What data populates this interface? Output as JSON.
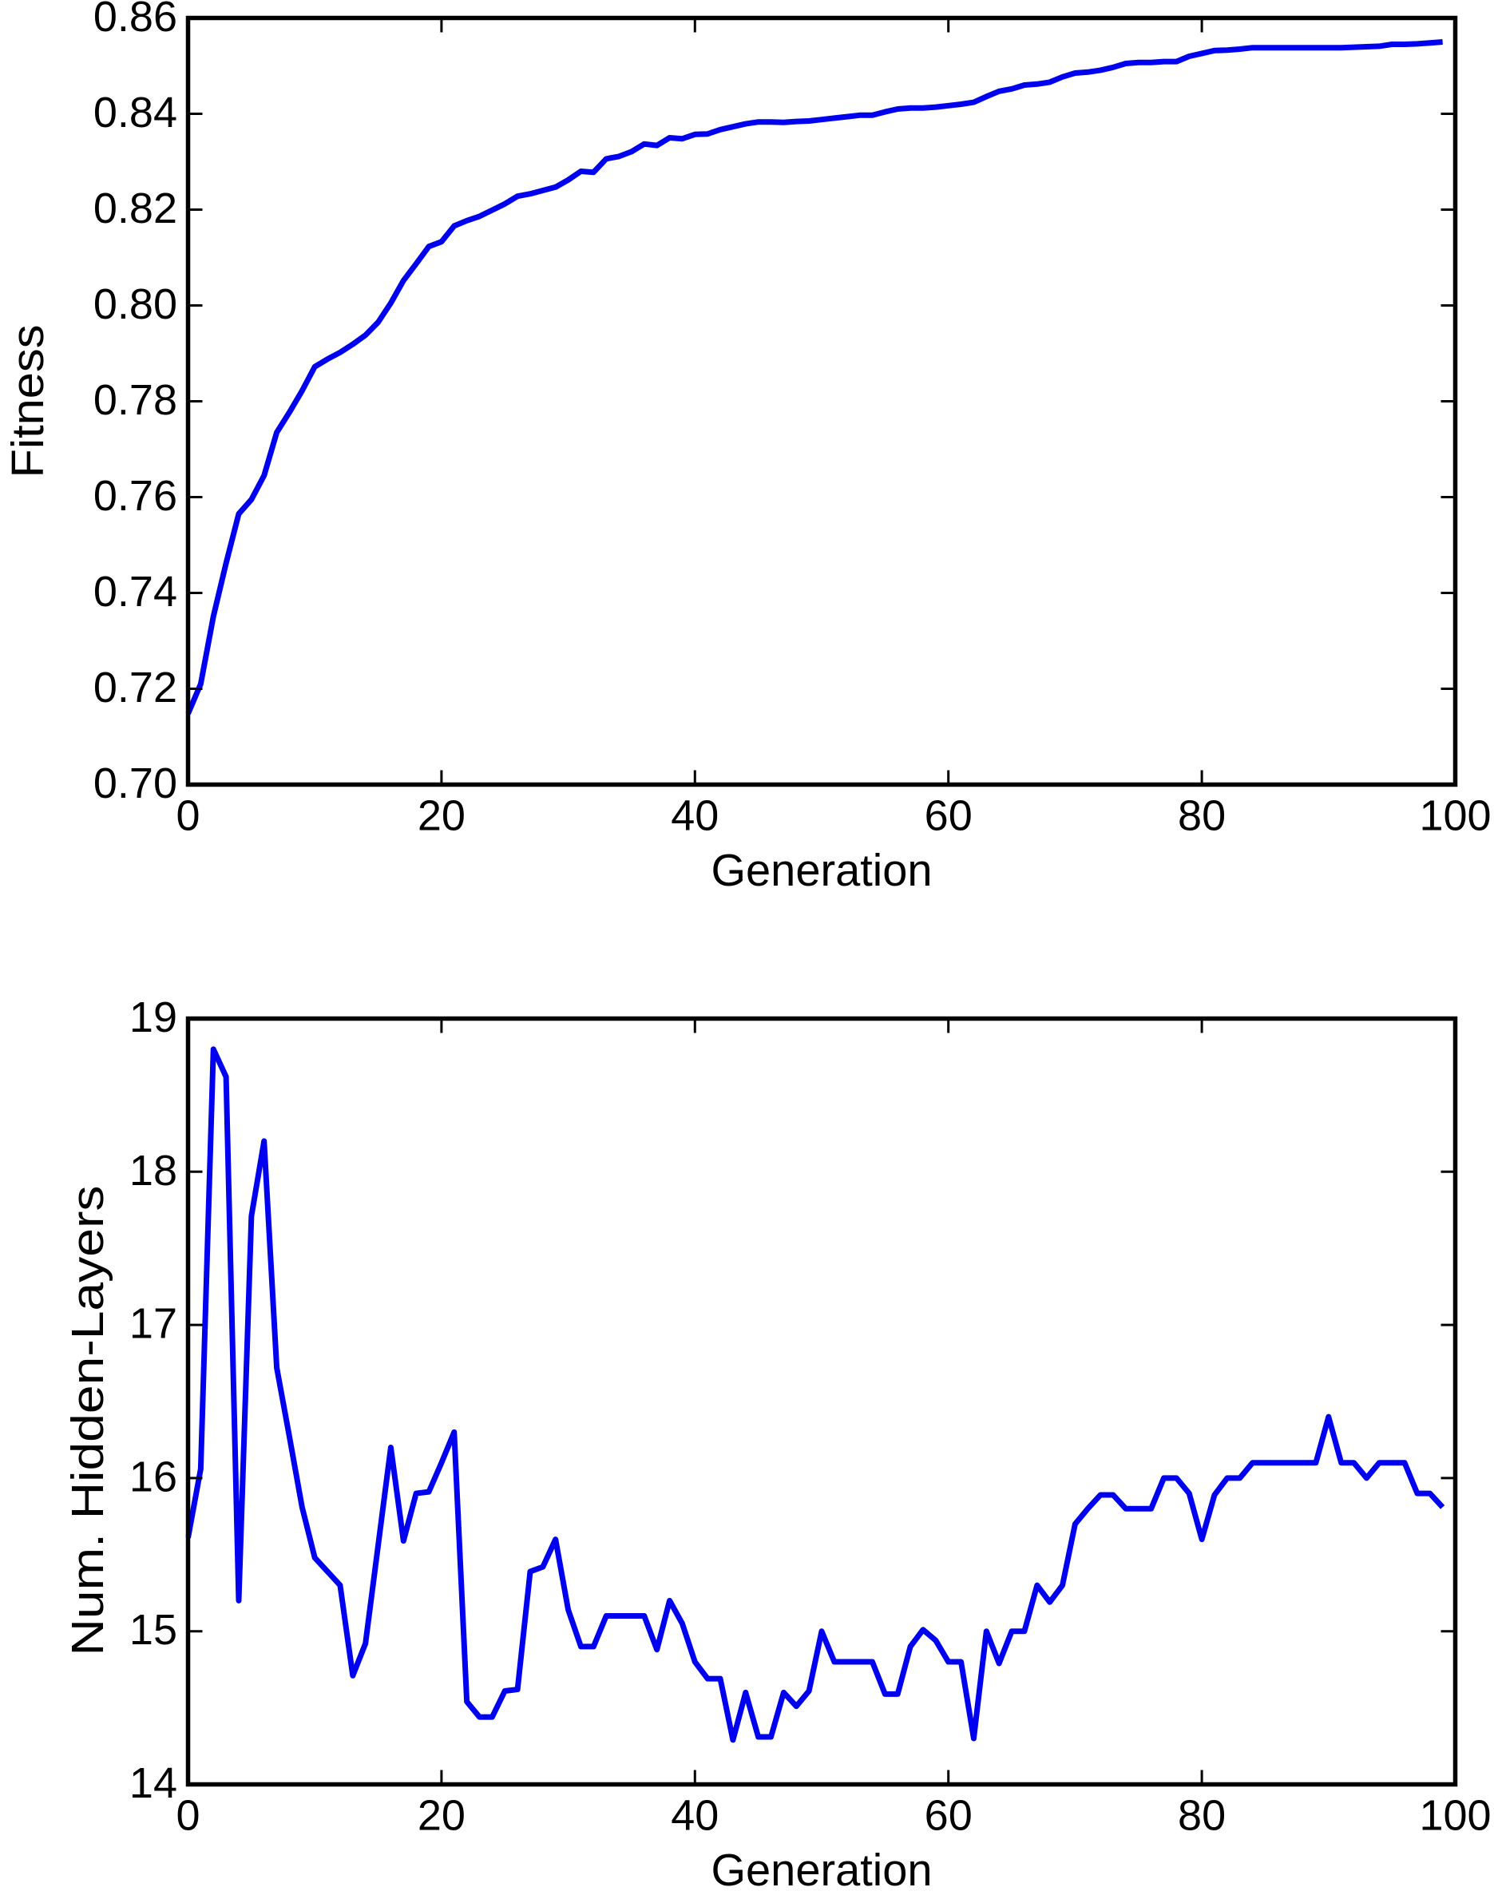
{
  "figure": {
    "background_color": "#ffffff",
    "line_color": "#0000f0",
    "axis_color": "#000000"
  },
  "chart_data": [
    {
      "type": "line",
      "title": "",
      "xlabel": "Generation",
      "ylabel": "Fitness",
      "xlim": [
        0,
        100
      ],
      "ylim": [
        0.7,
        0.86
      ],
      "xticks": [
        0,
        20,
        40,
        60,
        80,
        100
      ],
      "yticks": [
        0.7,
        0.72,
        0.74,
        0.76,
        0.78,
        0.8,
        0.82,
        0.84,
        0.86
      ],
      "ytick_decimals": 2,
      "grid": false,
      "legend": null,
      "x_start": 0,
      "x_step": 1,
      "values": [
        0.7148,
        0.721,
        0.7351,
        0.7462,
        0.7565,
        0.7595,
        0.7645,
        0.7735,
        0.7777,
        0.7822,
        0.7872,
        0.7888,
        0.7902,
        0.7919,
        0.7938,
        0.7965,
        0.8005,
        0.8052,
        0.8087,
        0.8123,
        0.8133,
        0.8166,
        0.8177,
        0.8186,
        0.8199,
        0.8212,
        0.8228,
        0.8233,
        0.824,
        0.8247,
        0.8262,
        0.828,
        0.8278,
        0.8306,
        0.8311,
        0.8321,
        0.8337,
        0.8334,
        0.835,
        0.8348,
        0.8357,
        0.8358,
        0.8367,
        0.8373,
        0.8379,
        0.8383,
        0.8383,
        0.8382,
        0.8384,
        0.8385,
        0.8388,
        0.8391,
        0.8394,
        0.8397,
        0.8397,
        0.8404,
        0.841,
        0.8412,
        0.8412,
        0.8414,
        0.8417,
        0.842,
        0.8424,
        0.8436,
        0.8447,
        0.8452,
        0.846,
        0.8462,
        0.8466,
        0.8477,
        0.8485,
        0.8487,
        0.8491,
        0.8497,
        0.8505,
        0.8507,
        0.8507,
        0.8509,
        0.8509,
        0.852,
        0.8526,
        0.8532,
        0.8533,
        0.8535,
        0.8538,
        0.8538,
        0.8538,
        0.8538,
        0.8538,
        0.8538,
        0.8538,
        0.8538,
        0.8539,
        0.854,
        0.8541,
        0.8545,
        0.8545,
        0.8546,
        0.8548,
        0.855
      ],
      "xtick_labels": [
        "0",
        "20",
        "40",
        "60",
        "80",
        "100"
      ],
      "ytick_labels": [
        "0.70",
        "0.72",
        "0.74",
        "0.76",
        "0.78",
        "0.80",
        "0.82",
        "0.84",
        "0.86"
      ]
    },
    {
      "type": "line",
      "title": "",
      "xlabel": "Generation",
      "ylabel": "Num. Hidden-Layers",
      "xlim": [
        0,
        100
      ],
      "ylim": [
        14,
        19
      ],
      "xticks": [
        0,
        20,
        40,
        60,
        80,
        100
      ],
      "yticks": [
        14,
        15,
        16,
        17,
        18,
        19
      ],
      "ytick_decimals": 0,
      "grid": false,
      "legend": null,
      "x_start": 0,
      "x_step": 1,
      "values": [
        15.61,
        16.06,
        18.8,
        18.62,
        15.2,
        17.71,
        18.2,
        16.72,
        16.27,
        15.81,
        15.48,
        15.39,
        15.3,
        14.71,
        14.92,
        15.56,
        16.2,
        15.59,
        15.9,
        15.91,
        16.1,
        16.3,
        14.54,
        14.44,
        14.44,
        14.61,
        14.62,
        15.39,
        15.42,
        15.6,
        15.14,
        14.9,
        14.9,
        15.1,
        15.1,
        15.1,
        15.1,
        14.88,
        15.2,
        15.05,
        14.8,
        14.69,
        14.69,
        14.29,
        14.6,
        14.31,
        14.31,
        14.6,
        14.51,
        14.61,
        15.0,
        14.8,
        14.8,
        14.8,
        14.8,
        14.59,
        14.59,
        14.9,
        15.01,
        14.94,
        14.8,
        14.8,
        14.3,
        15.0,
        14.79,
        15.0,
        15.0,
        15.3,
        15.19,
        15.3,
        15.7,
        15.8,
        15.89,
        15.89,
        15.8,
        15.8,
        15.8,
        16.0,
        16.0,
        15.9,
        15.6,
        15.89,
        16.0,
        16.0,
        16.1,
        16.1,
        16.1,
        16.1,
        16.1,
        16.1,
        16.4,
        16.1,
        16.1,
        16.0,
        16.1,
        16.1,
        16.1,
        15.9,
        15.9,
        15.81
      ],
      "xtick_labels": [
        "0",
        "20",
        "40",
        "60",
        "80",
        "100"
      ],
      "ytick_labels": [
        "14",
        "15",
        "16",
        "17",
        "18",
        "19"
      ]
    }
  ]
}
